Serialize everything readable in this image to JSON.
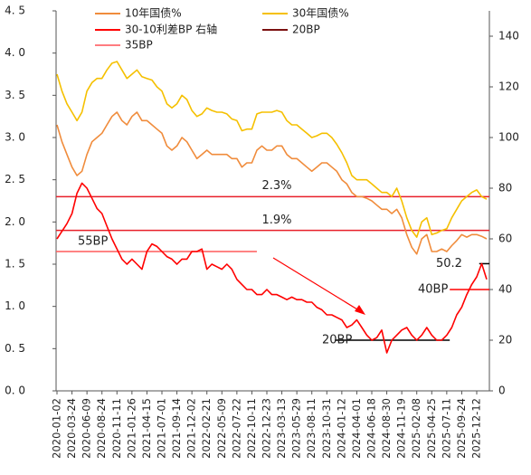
{
  "chart_data": {
    "type": "line",
    "categories": [
      "2020-01-02",
      null,
      null,
      "2020-03-24",
      null,
      null,
      "2020-06-09",
      null,
      null,
      "2020-08-24",
      null,
      null,
      "2020-11-11",
      null,
      null,
      "2021-01-26",
      null,
      null,
      "2021-04-15",
      null,
      null,
      "2021-07-01",
      null,
      null,
      "2021-09-14",
      null,
      null,
      "2021-12-02",
      null,
      null,
      "2022-02-21",
      null,
      null,
      "2022-05-09",
      null,
      null,
      "2022-07-22",
      null,
      null,
      "2022-10-11",
      null,
      null,
      "2022-12-23",
      null,
      null,
      "2023-03-13",
      null,
      null,
      "2023-05-29",
      null,
      null,
      "2023-08-11",
      null,
      null,
      "2023-10-31",
      null,
      null,
      "2024-01-12",
      null,
      null,
      "2024-04-01",
      null,
      null,
      "2024-06-18",
      null,
      null,
      "2024-08-30",
      null,
      null,
      "2024-11-19",
      null,
      null,
      "2025-02-08",
      null,
      null,
      "2025-04-25",
      null,
      null,
      "2025-07-11",
      null,
      null,
      "2025-09-24",
      null,
      null,
      "2025-12-12",
      null,
      null
    ],
    "series": [
      {
        "name": "10年国债%",
        "color": "#f08c3c",
        "values": [
          3.15,
          2.95,
          2.8,
          2.65,
          2.55,
          2.6,
          2.8,
          2.95,
          3.0,
          3.05,
          3.15,
          3.25,
          3.3,
          3.2,
          3.15,
          3.25,
          3.3,
          3.2,
          3.2,
          3.15,
          3.1,
          3.05,
          2.9,
          2.85,
          2.9,
          3.0,
          2.95,
          2.85,
          2.75,
          2.8,
          2.85,
          2.8,
          2.8,
          2.8,
          2.8,
          2.75,
          2.75,
          2.65,
          2.7,
          2.7,
          2.85,
          2.9,
          2.85,
          2.85,
          2.9,
          2.9,
          2.8,
          2.75,
          2.75,
          2.7,
          2.65,
          2.6,
          2.65,
          2.7,
          2.7,
          2.65,
          2.6,
          2.5,
          2.45,
          2.35,
          2.3,
          2.3,
          2.28,
          2.25,
          2.2,
          2.15,
          2.15,
          2.1,
          2.15,
          2.05,
          1.85,
          1.7,
          1.62,
          1.8,
          1.85,
          1.65,
          1.65,
          1.68,
          1.65,
          1.72,
          1.78,
          1.85,
          1.82,
          1.85,
          1.85,
          1.83,
          1.8
        ]
      },
      {
        "name": "30年国债%",
        "color": "#f5c000",
        "values": [
          3.75,
          3.55,
          3.4,
          3.3,
          3.2,
          3.3,
          3.55,
          3.65,
          3.7,
          3.7,
          3.8,
          3.88,
          3.9,
          3.8,
          3.7,
          3.75,
          3.8,
          3.72,
          3.7,
          3.68,
          3.6,
          3.55,
          3.4,
          3.35,
          3.4,
          3.5,
          3.45,
          3.32,
          3.25,
          3.28,
          3.35,
          3.32,
          3.3,
          3.3,
          3.28,
          3.22,
          3.2,
          3.08,
          3.1,
          3.1,
          3.28,
          3.3,
          3.3,
          3.3,
          3.32,
          3.3,
          3.2,
          3.15,
          3.15,
          3.1,
          3.05,
          3.0,
          3.02,
          3.05,
          3.05,
          3.0,
          2.92,
          2.82,
          2.7,
          2.55,
          2.5,
          2.5,
          2.5,
          2.45,
          2.4,
          2.35,
          2.35,
          2.3,
          2.4,
          2.25,
          2.05,
          1.9,
          1.82,
          2.0,
          2.05,
          1.85,
          1.87,
          1.9,
          1.92,
          2.05,
          2.15,
          2.25,
          2.3,
          2.35,
          2.38,
          2.3,
          2.27
        ]
      },
      {
        "name": "30-10利差BP 右轴",
        "color": "#ff0000",
        "axis": "y2",
        "values": [
          60,
          63,
          66,
          70,
          78,
          82,
          80,
          76,
          72,
          70,
          65,
          60,
          56,
          52,
          50,
          52,
          50,
          48,
          55,
          58,
          57,
          55,
          53,
          52,
          50,
          52,
          52,
          55,
          55,
          56,
          48,
          50,
          49,
          48,
          50,
          48,
          44,
          42,
          40,
          40,
          38,
          38,
          40,
          38,
          38,
          37,
          36,
          37,
          36,
          36,
          35,
          35,
          33,
          32,
          30,
          30,
          29,
          28,
          25,
          26,
          28,
          25,
          22,
          20,
          21,
          24,
          15,
          20,
          22,
          24,
          25,
          22,
          20,
          22,
          25,
          22,
          20,
          20,
          22,
          25,
          30,
          33,
          38,
          42,
          45,
          50.2,
          44
        ]
      }
    ],
    "legend_extra": [
      {
        "name": "20BP",
        "color": "#7b1010"
      },
      {
        "name": "35BP",
        "color": "#ff7c80"
      }
    ],
    "reference_lines": [
      {
        "text": "2.3%",
        "value": 2.3,
        "color": "#e8202a",
        "label_color": "#e8202a"
      },
      {
        "text": "1.9%",
        "value": 1.9,
        "color": "#e8202a",
        "label_color": "#e8202a"
      },
      {
        "text": "55BP",
        "value": 55,
        "axis": "y2",
        "color": "#ff5a5a",
        "label_color": "#e8202a"
      },
      {
        "text": "20BP",
        "value": 20,
        "axis": "y2",
        "color": "#000000",
        "label_color": "#e8202a"
      },
      {
        "text": "40BP",
        "value": 40,
        "axis": "y2",
        "color": "#ff0000",
        "label_color": "#e8202a"
      },
      {
        "text": "50.2",
        "value": 50.2,
        "axis": "y2",
        "color": "#000000",
        "label_color": "#222222"
      }
    ],
    "ylim": [
      0,
      4.5
    ],
    "yticks": [
      {
        "value": 0,
        "label": "0. 0"
      },
      {
        "value": 0.5,
        "label": "0. 5"
      },
      {
        "value": 1,
        "label": "1. 0"
      },
      {
        "value": 1.5,
        "label": "1. 5"
      },
      {
        "value": 2,
        "label": "2. 0"
      },
      {
        "value": 2.5,
        "label": "2. 5"
      },
      {
        "value": 3,
        "label": "3. 0"
      },
      {
        "value": 3.5,
        "label": "3. 5"
      },
      {
        "value": 4,
        "label": "4. 0"
      },
      {
        "value": 4.5,
        "label": "4. 5"
      }
    ],
    "y2lim": [
      0,
      150
    ],
    "y2ticks": [
      0,
      20,
      40,
      60,
      80,
      100,
      120,
      140
    ]
  }
}
